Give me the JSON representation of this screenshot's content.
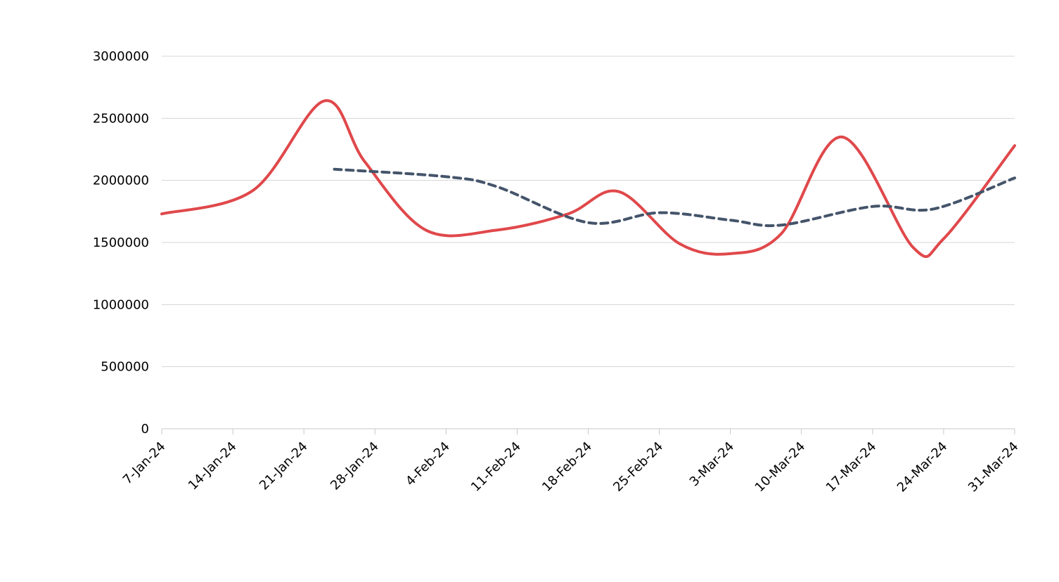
{
  "chart_data": {
    "type": "line",
    "title": "",
    "xlabel": "",
    "ylabel": "",
    "ylim": [
      0,
      3000000
    ],
    "yticks": [
      0,
      500000,
      1000000,
      1500000,
      2000000,
      2500000,
      3000000
    ],
    "ytick_labels": [
      "0",
      "500000",
      "1000000",
      "1500000",
      "2000000",
      "2500000",
      "3000000"
    ],
    "x_range": [
      "2024-01-07",
      "2024-03-31"
    ],
    "xticks": [
      "2024-01-07",
      "2024-01-14",
      "2024-01-21",
      "2024-01-28",
      "2024-02-04",
      "2024-02-11",
      "2024-02-18",
      "2024-02-25",
      "2024-03-03",
      "2024-03-10",
      "2024-03-17",
      "2024-03-24",
      "2024-03-31"
    ],
    "xtick_labels": [
      "7-Jan-24",
      "14-Jan-24",
      "21-Jan-24",
      "28-Jan-24",
      "4-Feb-24",
      "11-Feb-24",
      "18-Feb-24",
      "25-Feb-24",
      "3-Mar-24",
      "10-Mar-24",
      "17-Mar-24",
      "24-Mar-24",
      "31-Mar-24"
    ],
    "grid": true,
    "legend": "none",
    "series": [
      {
        "style": "solid",
        "color": "#e0484b",
        "x": [
          "2024-01-07",
          "2024-01-16",
          "2024-01-23",
          "2024-01-27",
          "2024-02-02",
          "2024-02-09",
          "2024-02-16",
          "2024-02-21",
          "2024-02-27",
          "2024-03-03",
          "2024-03-08",
          "2024-03-14",
          "2024-03-21",
          "2024-03-24",
          "2024-03-31"
        ],
        "y": [
          1730000,
          1920000,
          2640000,
          2150000,
          1600000,
          1600000,
          1730000,
          1910000,
          1490000,
          1410000,
          1570000,
          2350000,
          1460000,
          1530000,
          2280000
        ]
      },
      {
        "style": "dashed",
        "color": "#44546a",
        "x": [
          "2024-01-24",
          "2024-02-04",
          "2024-02-09",
          "2024-02-18",
          "2024-02-25",
          "2024-03-03",
          "2024-03-08",
          "2024-03-17",
          "2024-03-23",
          "2024-03-31"
        ],
        "y": [
          2090000,
          2030000,
          1950000,
          1660000,
          1740000,
          1680000,
          1640000,
          1790000,
          1770000,
          2020000
        ]
      }
    ]
  }
}
